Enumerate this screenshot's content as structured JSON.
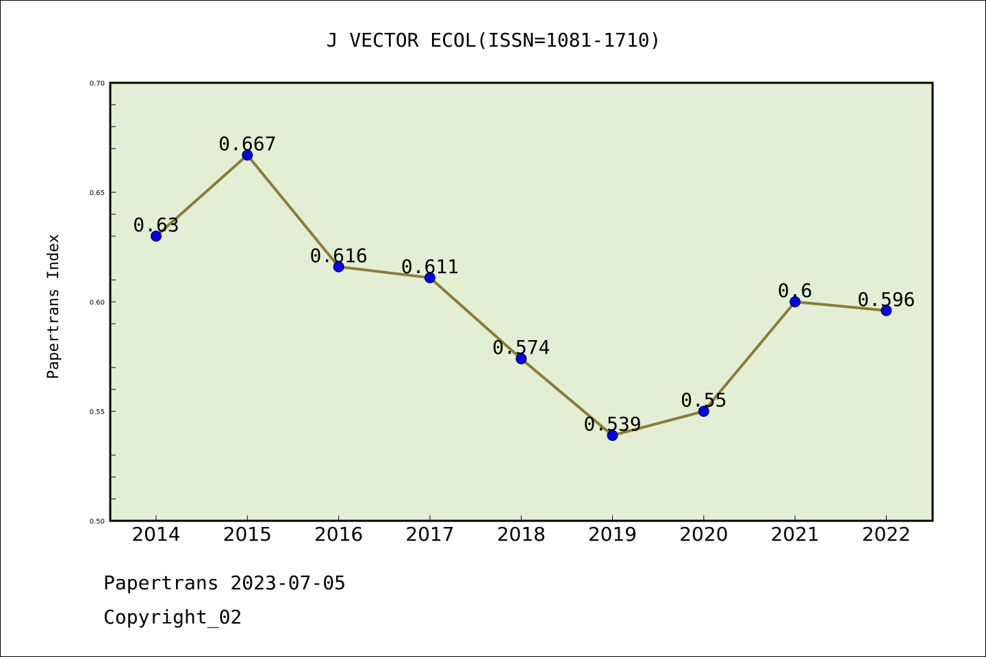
{
  "chart_data": {
    "type": "line",
    "title": "J VECTOR ECOL(ISSN=1081-1710)",
    "xlabel": "",
    "ylabel": "Papertrans Index",
    "categories": [
      "2014",
      "2015",
      "2016",
      "2017",
      "2018",
      "2019",
      "2020",
      "2021",
      "2022"
    ],
    "series": [
      {
        "values": [
          0.63,
          0.667,
          0.616,
          0.611,
          0.574,
          0.539,
          0.55,
          0.6,
          0.596
        ],
        "data_labels": [
          "0.63",
          "0.667",
          "0.616",
          "0.611",
          "0.574",
          "0.539",
          "0.55",
          "0.6",
          "0.596"
        ],
        "line_color": "#8B7D35",
        "marker_color": "#0000FF"
      }
    ],
    "ylim": [
      0.5,
      0.7
    ],
    "yticks": [
      "0.50",
      "0.55",
      "0.60",
      "0.65",
      "0.70"
    ],
    "grid": false,
    "legend": "none",
    "plot_background": "#E2EFD4"
  },
  "footer": {
    "line1": "Papertrans 2023-07-05",
    "line2": "Copyright_02"
  }
}
